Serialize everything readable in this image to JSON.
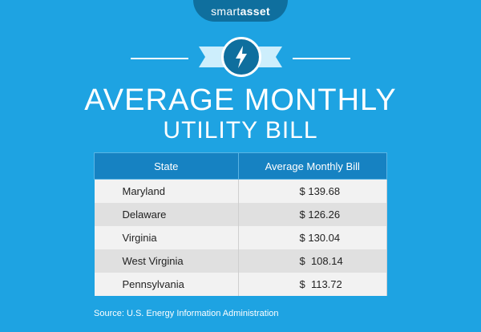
{
  "brand": {
    "name_part1": "smart",
    "name_part2": "asset"
  },
  "emblem": {
    "icon": "lightning-bolt-icon"
  },
  "title": {
    "line1": "AVERAGE MONTHLY",
    "line2": "UTILITY BILL"
  },
  "chart_data": {
    "type": "table",
    "columns": [
      "State",
      "Average Monthly Bill"
    ],
    "rows": [
      {
        "state": "Maryland",
        "bill": "$ 139.68"
      },
      {
        "state": "Delaware",
        "bill": "$ 126.26"
      },
      {
        "state": "Virginia",
        "bill": "$ 130.04"
      },
      {
        "state": "West Virginia",
        "bill": "$  108.14"
      },
      {
        "state": "Pennsylvania",
        "bill": "$  113.72"
      }
    ]
  },
  "source": "Source: U.S. Energy Information Administration",
  "colors": {
    "background": "#1ea3e2",
    "header": "#1682c2",
    "badge": "#0f6f9e"
  }
}
